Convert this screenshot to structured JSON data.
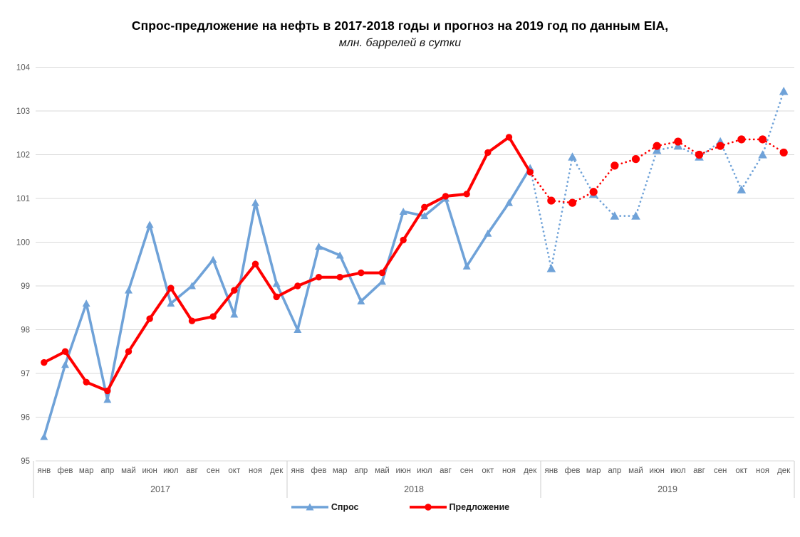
{
  "title": "Спрос-предложение на нефть в 2017-2018 годы и прогноз на 2019 год по данным EIA,",
  "subtitle": "млн. баррелей в сутки",
  "chart_data": {
    "type": "line",
    "months": [
      "янв",
      "фев",
      "мар",
      "апр",
      "май",
      "июн",
      "июл",
      "авг",
      "сен",
      "окт",
      "ноя",
      "дек"
    ],
    "years": [
      "2017",
      "2018",
      "2019"
    ],
    "forecast_year": "2019",
    "forecast_style": "dotted",
    "y_ticks": [
      95,
      96,
      97,
      98,
      99,
      100,
      101,
      102,
      103,
      104
    ],
    "ylim": [
      95,
      104
    ],
    "grid": "horizontal",
    "legend_position": "bottom",
    "axis_text_color": "#595959",
    "gridline_color": "#d9d9d9",
    "separator_color": "#cccccc",
    "series": [
      {
        "id": "demand",
        "name": "Спрос",
        "color": "#6FA2D8",
        "marker": "triangle",
        "values": [
          95.55,
          97.2,
          98.6,
          96.4,
          98.9,
          100.4,
          98.6,
          99.0,
          99.6,
          98.35,
          100.9,
          99.05,
          98.0,
          99.9,
          99.7,
          98.65,
          99.1,
          100.7,
          100.6,
          101.0,
          99.45,
          100.2,
          100.9,
          101.7,
          99.4,
          101.95,
          101.1,
          100.6,
          100.6,
          102.1,
          102.2,
          101.95,
          102.3,
          101.2,
          102.0,
          103.45
        ]
      },
      {
        "id": "supply",
        "name": "Предложение",
        "color": "#FF0000",
        "marker": "circle",
        "values": [
          97.25,
          97.5,
          96.8,
          96.6,
          97.5,
          98.25,
          98.95,
          98.2,
          98.3,
          98.9,
          99.5,
          98.75,
          99.0,
          99.2,
          99.2,
          99.3,
          99.3,
          100.05,
          100.8,
          101.05,
          101.1,
          102.05,
          102.4,
          101.6,
          100.95,
          100.9,
          101.15,
          101.75,
          101.9,
          102.2,
          102.3,
          102.0,
          102.2,
          102.35,
          102.35,
          102.05
        ]
      }
    ],
    "forecast_start_index": 24
  }
}
